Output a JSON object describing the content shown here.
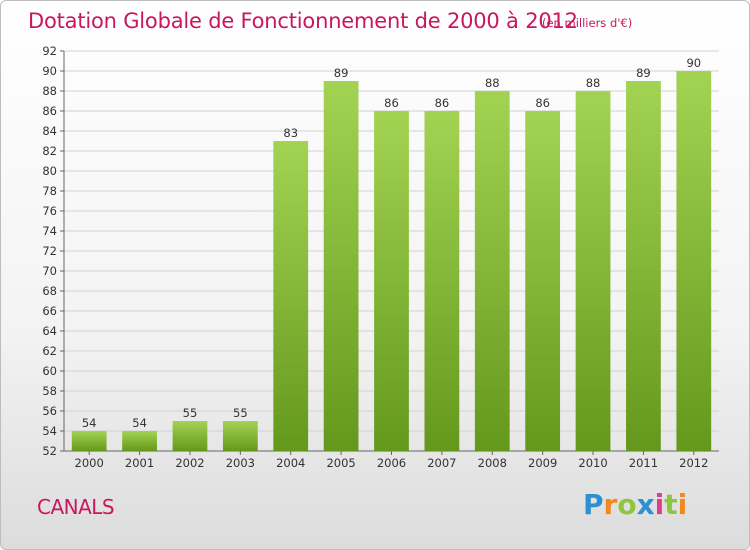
{
  "chart_data": {
    "type": "bar",
    "title": "Dotation Globale de Fonctionnement de 2000 à 2012",
    "subtitle": "(en milliers d'€)",
    "categories": [
      "2000",
      "2001",
      "2002",
      "2003",
      "2004",
      "2005",
      "2006",
      "2007",
      "2008",
      "2009",
      "2010",
      "2011",
      "2012"
    ],
    "values": [
      54,
      54,
      55,
      55,
      83,
      89,
      86,
      86,
      88,
      86,
      88,
      89,
      90
    ],
    "ylim": [
      52,
      92
    ],
    "yticks": [
      52,
      54,
      56,
      58,
      60,
      62,
      64,
      66,
      68,
      70,
      72,
      74,
      76,
      78,
      80,
      82,
      84,
      86,
      88,
      90,
      92
    ],
    "grid": true,
    "bar_color_top": "#a3d352",
    "bar_color_bottom": "#64981c"
  },
  "footer": {
    "commune": "CANALS",
    "logo_letters": [
      {
        "ch": "P",
        "color": "#2f8fd0"
      },
      {
        "ch": "r",
        "color": "#f08a1c"
      },
      {
        "ch": "o",
        "color": "#8dc63f"
      },
      {
        "ch": "x",
        "color": "#2f8fd0"
      },
      {
        "ch": "i",
        "color": "#e03c8a"
      },
      {
        "ch": "t",
        "color": "#8dc63f"
      },
      {
        "ch": "i",
        "color": "#f08a1c"
      }
    ]
  }
}
